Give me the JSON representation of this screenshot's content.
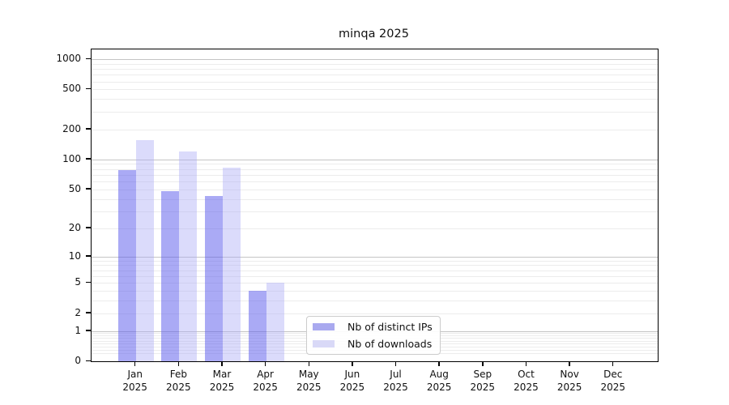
{
  "title": "minqa 2025",
  "chart_data": {
    "type": "bar",
    "title": "minqa 2025",
    "categories": [
      "Jan",
      "Feb",
      "Mar",
      "Apr",
      "May",
      "Jun",
      "Jul",
      "Aug",
      "Sep",
      "Oct",
      "Nov",
      "Dec"
    ],
    "year_label": "2025",
    "series": [
      {
        "name": "Nb of distinct IPs",
        "color": "rgba(85,85,235,0.5)",
        "legend_color": "#a9a9ef",
        "values": [
          78,
          48,
          43,
          4,
          0,
          0,
          0,
          0,
          0,
          0,
          0,
          0
        ]
      },
      {
        "name": "Nb of downloads",
        "color": "rgba(170,170,245,0.42)",
        "legend_color": "#d9d9f7",
        "values": [
          155,
          120,
          82,
          5,
          0,
          0,
          0,
          0,
          0,
          0,
          0,
          0
        ]
      }
    ],
    "xlabel": "",
    "ylabel": "",
    "y_scale": "log1p",
    "y_ticks": [
      0,
      1,
      2,
      5,
      10,
      20,
      50,
      100,
      200,
      500,
      1000
    ],
    "ylim": [
      0,
      1250
    ],
    "grid": "horizontal major at powers of 10, faint minors between",
    "legend_position": "lower center-right inside plot"
  }
}
